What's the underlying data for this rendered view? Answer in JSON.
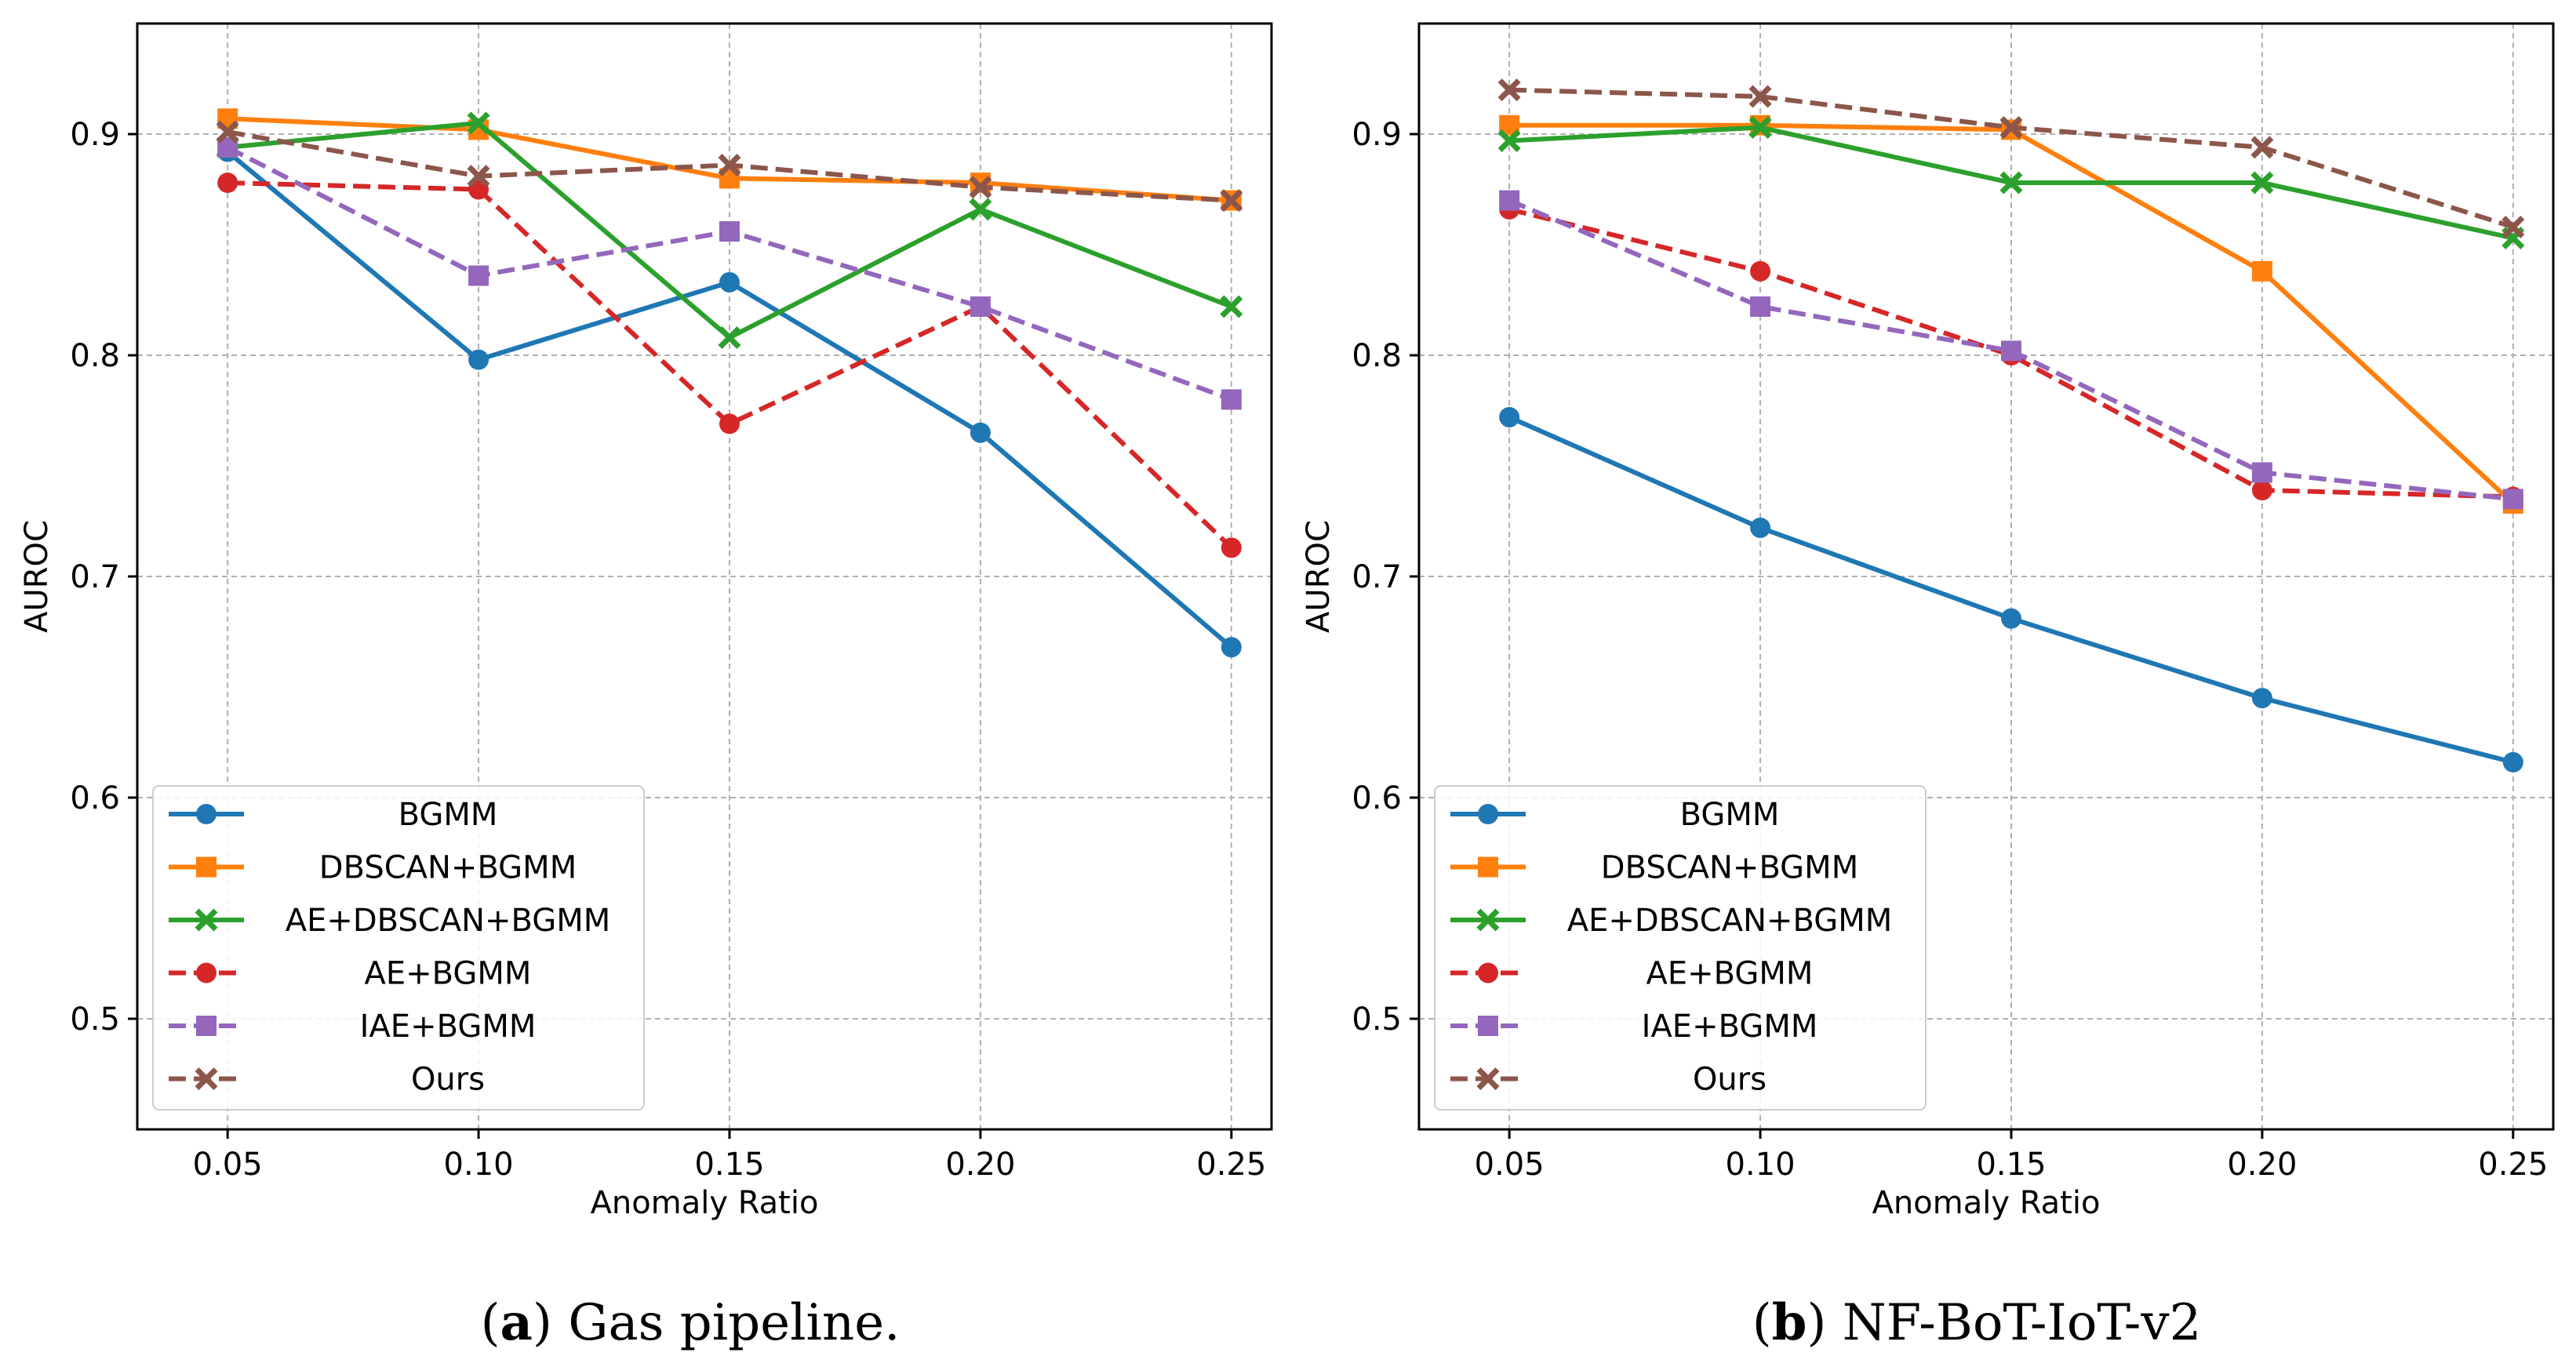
{
  "chart_data": [
    {
      "type": "line",
      "panel_letter": "a",
      "caption": "Gas pipeline.",
      "xlabel": "Anomaly Ratio",
      "ylabel": "AUROC",
      "x": [
        0.05,
        0.1,
        0.15,
        0.2,
        0.25
      ],
      "xticks": [
        "0.05",
        "0.10",
        "0.15",
        "0.20",
        "0.25"
      ],
      "yticks": [
        "0.5",
        "0.6",
        "0.7",
        "0.8",
        "0.9"
      ],
      "xlim": [
        0.032,
        0.258
      ],
      "ylim": [
        0.45,
        0.95
      ],
      "grid": true,
      "legend_position": "lower-left",
      "series": [
        {
          "name": "BGMM",
          "color": "#1f77b4",
          "dash": "solid",
          "marker": "circle",
          "values": [
            0.892,
            0.798,
            0.833,
            0.765,
            0.668
          ]
        },
        {
          "name": "DBSCAN+BGMM",
          "color": "#ff7f0e",
          "dash": "solid",
          "marker": "square",
          "values": [
            0.907,
            0.902,
            0.88,
            0.878,
            0.87
          ]
        },
        {
          "name": "AE+DBSCAN+BGMM",
          "color": "#2ca02c",
          "dash": "solid",
          "marker": "x",
          "values": [
            0.894,
            0.905,
            0.808,
            0.866,
            0.822
          ]
        },
        {
          "name": "AE+BGMM",
          "color": "#d62728",
          "dash": "dashed",
          "marker": "circle",
          "values": [
            0.878,
            0.875,
            0.769,
            0.822,
            0.713
          ]
        },
        {
          "name": "IAE+BGMM",
          "color": "#9467bd",
          "dash": "dashed",
          "marker": "square",
          "values": [
            0.894,
            0.836,
            0.856,
            0.822,
            0.78
          ]
        },
        {
          "name": "Ours",
          "color": "#8c564b",
          "dash": "dashed",
          "marker": "x",
          "values": [
            0.901,
            0.881,
            0.886,
            0.876,
            0.87
          ]
        }
      ]
    },
    {
      "type": "line",
      "panel_letter": "b",
      "caption": "NF-BoT-IoT-v2",
      "xlabel": "Anomaly Ratio",
      "ylabel": "AUROC",
      "x": [
        0.05,
        0.1,
        0.15,
        0.2,
        0.25
      ],
      "xticks": [
        "0.05",
        "0.10",
        "0.15",
        "0.20",
        "0.25"
      ],
      "yticks": [
        "0.5",
        "0.6",
        "0.7",
        "0.8",
        "0.9"
      ],
      "xlim": [
        0.032,
        0.258
      ],
      "ylim": [
        0.45,
        0.95
      ],
      "grid": true,
      "legend_position": "lower-left",
      "series": [
        {
          "name": "BGMM",
          "color": "#1f77b4",
          "dash": "solid",
          "marker": "circle",
          "values": [
            0.772,
            0.722,
            0.681,
            0.645,
            0.616
          ]
        },
        {
          "name": "DBSCAN+BGMM",
          "color": "#ff7f0e",
          "dash": "solid",
          "marker": "square",
          "values": [
            0.904,
            0.904,
            0.902,
            0.838,
            0.733
          ]
        },
        {
          "name": "AE+DBSCAN+BGMM",
          "color": "#2ca02c",
          "dash": "solid",
          "marker": "x",
          "values": [
            0.897,
            0.903,
            0.878,
            0.878,
            0.853
          ]
        },
        {
          "name": "AE+BGMM",
          "color": "#d62728",
          "dash": "dashed",
          "marker": "circle",
          "values": [
            0.866,
            0.838,
            0.8,
            0.739,
            0.736
          ]
        },
        {
          "name": "IAE+BGMM",
          "color": "#9467bd",
          "dash": "dashed",
          "marker": "square",
          "values": [
            0.87,
            0.822,
            0.802,
            0.747,
            0.735
          ]
        },
        {
          "name": "Ours",
          "color": "#8c564b",
          "dash": "dashed",
          "marker": "x",
          "values": [
            0.92,
            0.917,
            0.903,
            0.894,
            0.858
          ]
        }
      ]
    }
  ]
}
